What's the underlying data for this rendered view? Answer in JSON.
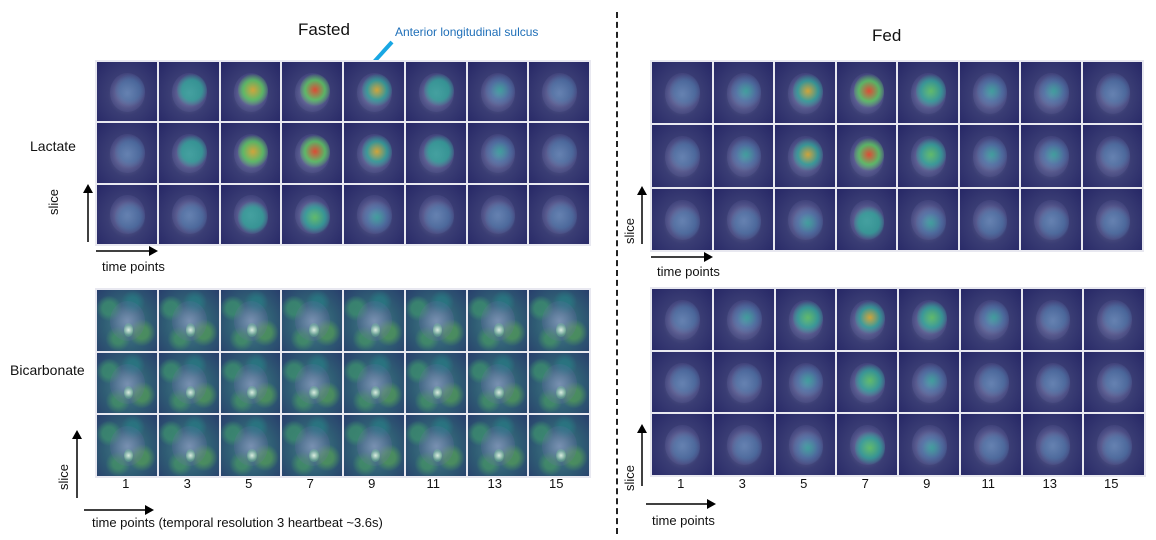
{
  "fasted": {
    "title": "Fasted",
    "annotation": "Anterior longitudinal sulcus",
    "lactate_label": "Lactate",
    "bicarbonate_label": "Bicarbonate",
    "slice_label_top": "slice",
    "slice_label_bottom": "slice",
    "time_label_top": "time points",
    "time_label_bottom": "time points (temporal resolution 3 heartbeat ~3.6s)",
    "ticks": [
      "1",
      "3",
      "5",
      "7",
      "9",
      "11",
      "13",
      "15"
    ]
  },
  "fed": {
    "title": "Fed",
    "slice_label_top": "slice",
    "slice_label_bottom": "slice",
    "time_label_top": "time points",
    "time_label_bottom": "time points",
    "ticks": [
      "1",
      "3",
      "5",
      "7",
      "9",
      "11",
      "13",
      "15"
    ]
  },
  "colors": {
    "annotation": "#1f6fb8",
    "arrow": "#19a7e3"
  },
  "image_description": {
    "grids": 4,
    "rows_per_grid": 3,
    "columns_per_grid": 8,
    "peak_time_point_columns": [
      3,
      4
    ]
  }
}
